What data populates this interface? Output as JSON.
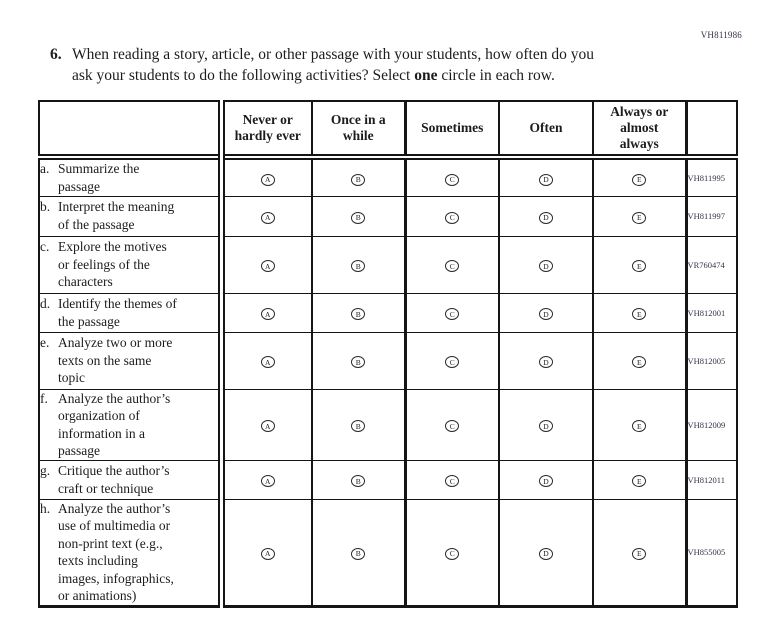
{
  "page": {
    "top_right_code": "VH811986"
  },
  "question": {
    "number": "6.",
    "text_before_bold": "When reading a story, article, or other passage with your students, how often do you\nask your students to do the following activities? Select ",
    "bold_word": "one",
    "text_after_bold": " circle in each row."
  },
  "table": {
    "column_headers": [
      "Never or\nhardly ever",
      "Once in a\nwhile",
      "Sometimes",
      "Often",
      "Always or\nalmost\nalways"
    ],
    "bubble_letters": [
      "A",
      "B",
      "C",
      "D",
      "E"
    ],
    "rows": [
      {
        "letter": "a.",
        "label": "Summarize the\npassage",
        "code": "VH811995"
      },
      {
        "letter": "b.",
        "label": "Interpret the meaning\nof the passage",
        "code": "VH811997"
      },
      {
        "letter": "c.",
        "label": "Explore the motives\nor feelings of the\ncharacters",
        "code": "VR760474"
      },
      {
        "letter": "d.",
        "label": "Identify the themes of\nthe passage",
        "code": "VH812001"
      },
      {
        "letter": "e.",
        "label": "Analyze two or more\ntexts on the same\ntopic",
        "code": "VH812005"
      },
      {
        "letter": "f.",
        "label": "Analyze the author’s\norganization of\ninformation in a\npassage",
        "code": "VH812009"
      },
      {
        "letter": "g.",
        "label": "Critique the author’s\ncraft or technique",
        "code": "VH812011"
      },
      {
        "letter": "h.",
        "label": "Analyze the author’s\nuse of multimedia or\nnon-print text (e.g.,\ntexts including\nimages, infographics,\nor animations)",
        "code": "VH855005"
      }
    ]
  }
}
